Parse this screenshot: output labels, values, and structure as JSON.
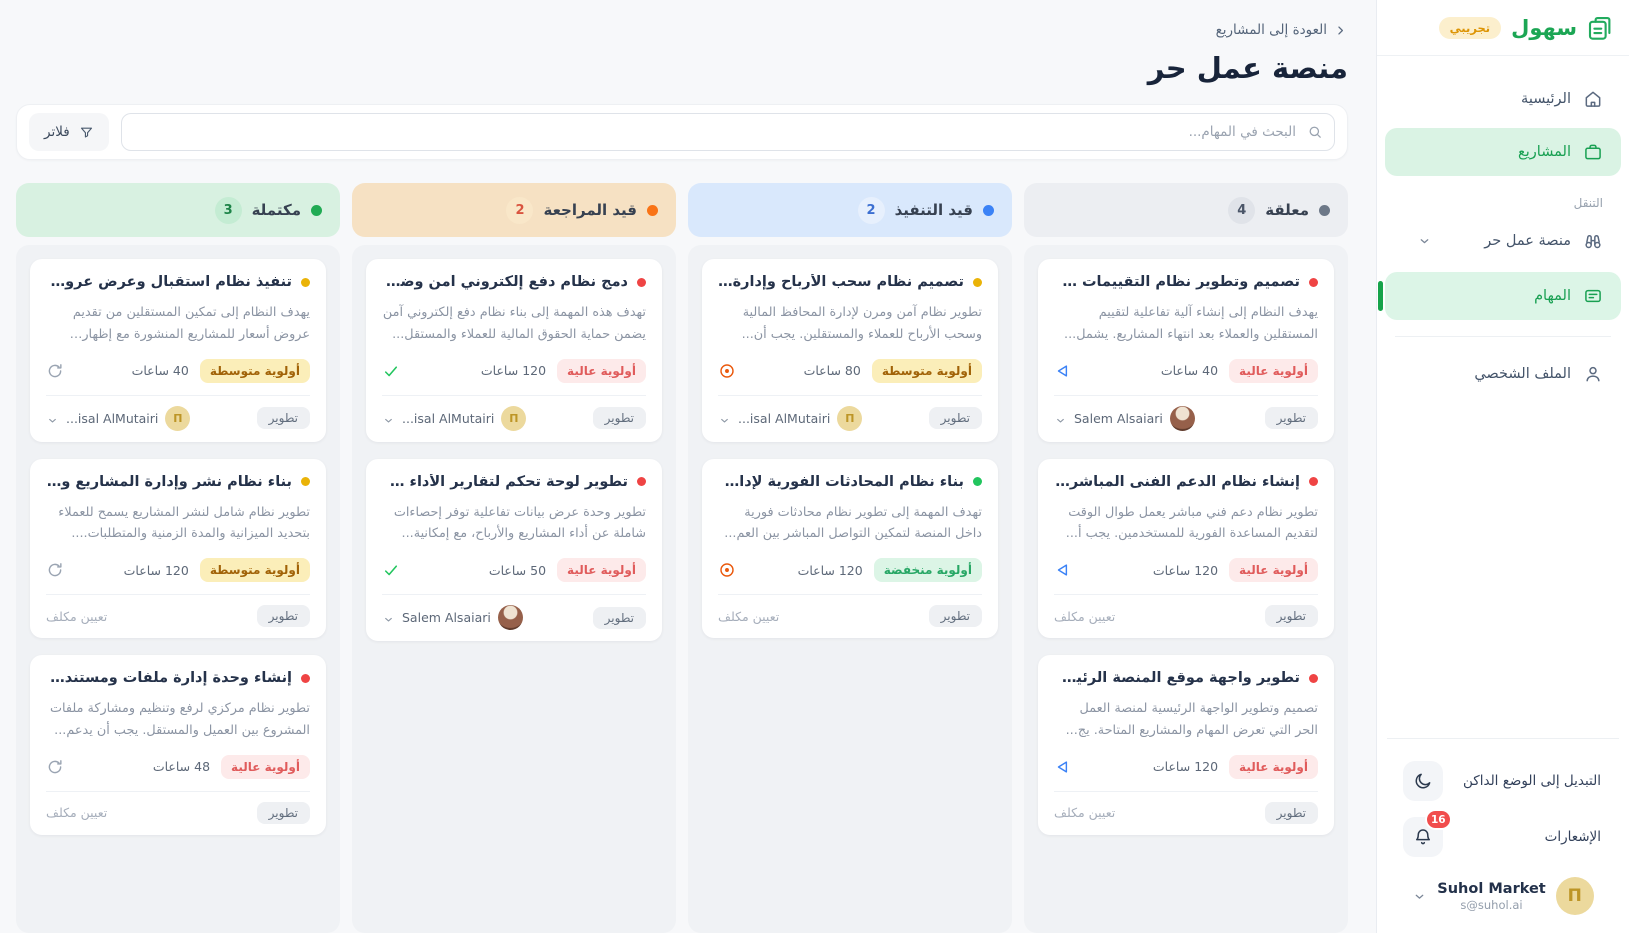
{
  "app": {
    "brand": "سهول",
    "brand_badge": "تجريبي"
  },
  "sidebar": {
    "home": "الرئيسية",
    "projects": "المشاريع",
    "section": "التنقل",
    "workspace": "منصة عمل حر",
    "tasks": "المهام",
    "profile": "الملف الشخصي",
    "dark_mode": "التبديل إلى الوضع الداكن",
    "notifications": "الإشعارات",
    "notifications_count": "16",
    "user_name": "Suhol Market",
    "user_email": "s@suhol.ai"
  },
  "header": {
    "back": "العودة إلى المشاريع",
    "title": "منصة عمل حر"
  },
  "toolbar": {
    "search_placeholder": "البحث في المهام...",
    "filters": "فلاتر"
  },
  "board": {
    "assign_label": "تعيين مكلف",
    "tag_label": "تطوير",
    "priority_colors": {
      "high": {
        "bg": "#fdeaea",
        "text": "#e05b5b",
        "dot": "#ef4444"
      },
      "medium": {
        "bg": "#fbeeb9",
        "text": "#a16207",
        "dot": "#eab308"
      },
      "low": {
        "bg": "#dcf5e6",
        "text": "#27a765",
        "dot": "#22c55e"
      }
    },
    "columns": [
      {
        "key": "pending",
        "title": "معلقة",
        "count": "4",
        "colors": {
          "header_bg": "#eceef2",
          "dot": "#6d7888",
          "count_bg": "#e0e3e9",
          "count_text": "#4a5568",
          "action": "#3b82f6"
        },
        "action_icon": "play-icon",
        "cards": [
          {
            "priority": "high",
            "priority_label": "أولوية عالية",
            "hours": "40 ساعات",
            "title": "تصميم وتطوير نظام التقييمات وال...",
            "desc": "يهدف النظام إلى إنشاء آلية تفاعلية لتقييم المستقلين والعملاء بعد انتهاء المشاريع. يشمل...",
            "assignee": {
              "name": "Salem Alsaiari",
              "avatar": "salem"
            }
          },
          {
            "priority": "high",
            "priority_label": "أولوية عالية",
            "hours": "120 ساعات",
            "title": "إنشاء نظام الدعم الفنى المباشر عل...",
            "desc": "تطوير نظام دعم فني مباشر يعمل طوال الوقت لتقديم المساعدة الفورية للمستخدمين. يجب أ...",
            "assignee": null
          },
          {
            "priority": "high",
            "priority_label": "أولوية عالية",
            "hours": "120 ساعات",
            "title": "تطوير واجهة موقع المنصة الرئيسية",
            "desc": "تصميم وتطوير الواجهة الرئيسية لمنصة العمل الحر التي تعرض المهام والمشاريع المتاحة. يج...",
            "assignee": null
          }
        ]
      },
      {
        "key": "in-progress",
        "title": "قيد التنفيذ",
        "count": "2",
        "colors": {
          "header_bg": "#d9e8fc",
          "dot": "#3b82f6",
          "count_bg": "#e7f0fd",
          "count_text": "#3c6fd1",
          "action": "#ea580c"
        },
        "action_icon": "eye-icon",
        "cards": [
          {
            "priority": "medium",
            "priority_label": "أولوية متوسطة",
            "hours": "80 ساعات",
            "title": "تصميم نظام سحب الأرباح وإدارة ال...",
            "desc": "تطوير نظام آمن ومرن لإدارة المحافظ المالية وسحب الأرباح للعملاء والمستقلين. يجب أن...",
            "assignee": {
              "name": "...isal AlMutairi",
              "avatar": "gold"
            }
          },
          {
            "priority": "low",
            "priority_label": "أولوية منخفضة",
            "hours": "120 ساعات",
            "title": "بناء نظام المحادثات الفورية لإدارة ا...",
            "desc": "تهدف المهمة إلى تطوير نظام محادثات فورية داخل المنصة لتمكين التواصل المباشر بين العم...",
            "assignee": null
          }
        ]
      },
      {
        "key": "review",
        "title": "قيد المراجعة",
        "count": "2",
        "colors": {
          "header_bg": "#f6e1c3",
          "dot": "#f97316",
          "count_bg": "#f9e7c9",
          "count_text": "#d9543f",
          "action": "#22c55e"
        },
        "action_icon": "check-icon",
        "cards": [
          {
            "priority": "high",
            "priority_label": "أولوية عالية",
            "hours": "120 ساعات",
            "title": "دمج نظام دفع إلكتروني آمن وضما...",
            "desc": "تهدف هذه المهمة إلى بناء نظام دفع إلكتروني آمن يضمن حماية الحقوق المالية للعملاء والمستقل...",
            "assignee": {
              "name": "...isal AlMutairi",
              "avatar": "gold"
            }
          },
          {
            "priority": "high",
            "priority_label": "أولوية عالية",
            "hours": "50 ساعات",
            "title": "تطوير لوحة تحكم لتقارير الأداء والإ...",
            "desc": "تطوير وحدة عرض بيانات تفاعلية توفر إحصاءات شاملة عن أداء المشاريع والأرباح، مع إمكانية...",
            "assignee": {
              "name": "Salem Alsaiari",
              "avatar": "salem"
            }
          }
        ]
      },
      {
        "key": "done",
        "title": "مكتملة",
        "count": "3",
        "colors": {
          "header_bg": "#d8f1e1",
          "dot": "#21ab54",
          "count_bg": "#c4ecd3",
          "count_text": "#1d8348",
          "action": "#9aa4b2"
        },
        "action_icon": "refresh-icon",
        "cards": [
          {
            "priority": "medium",
            "priority_label": "أولوية متوسطة",
            "hours": "40 ساعات",
            "title": "تنفيذ نظام استقبال وعرض عروض...",
            "desc": "يهدف النظام إلى تمكين المستقلين من تقديم عروض أسعار للمشاريع المنشورة مع إظهار كافة...",
            "assignee": {
              "name": "...isal AlMutairi",
              "avatar": "gold"
            }
          },
          {
            "priority": "medium",
            "priority_label": "أولوية متوسطة",
            "hours": "120 ساعات",
            "title": "بناء نظام نشر وإدارة المشاريع والم...",
            "desc": "تطوير نظام شامل لنشر المشاريع يسمح للعملاء بتحديد الميزانية والمدة الزمنية والمتطلبات....",
            "assignee": null
          },
          {
            "priority": "high",
            "priority_label": "أولوية عالية",
            "hours": "48 ساعات",
            "title": "إنشاء وحدة إدارة ملفات ومستندا...",
            "desc": "تطوير نظام مركزي لرفع وتنظيم ومشاركة ملفات المشروع بين العميل والمستقل. يجب أن يدعم...",
            "assignee": null
          }
        ]
      }
    ]
  }
}
